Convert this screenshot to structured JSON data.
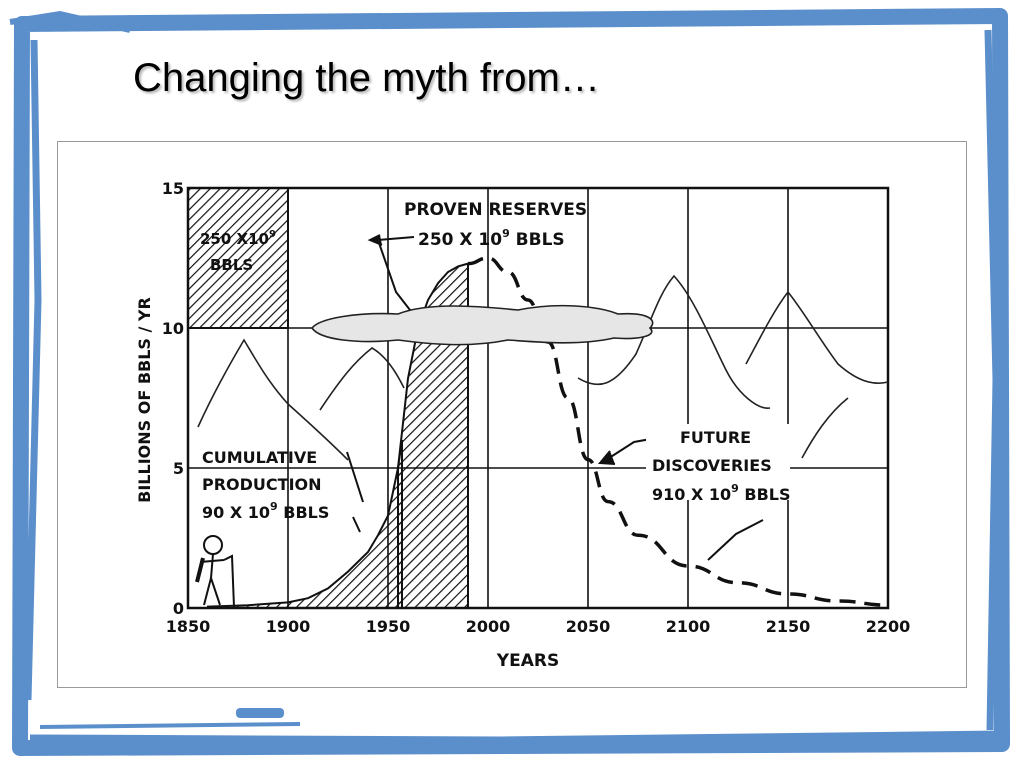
{
  "slide": {
    "title": "Changing the myth from…",
    "frame_color": "#5b8fcb"
  },
  "chart_data": {
    "type": "line",
    "xlabel": "YEARS",
    "ylabel": "BILLIONS OF BBLS / YR",
    "xlim": [
      1850,
      2200
    ],
    "ylim": [
      0,
      15
    ],
    "x_ticks": [
      "1850",
      "1900",
      "1950",
      "2000",
      "2050",
      "2100",
      "2150",
      "2200"
    ],
    "y_ticks": [
      "0",
      "5",
      "10",
      "15"
    ],
    "grid": true,
    "series": [
      {
        "style": "solid-shaded",
        "x": [
          1860,
          1880,
          1900,
          1910,
          1920,
          1930,
          1940,
          1945,
          1950,
          1955,
          1957
        ],
        "values": [
          0.05,
          0.1,
          0.2,
          0.35,
          0.7,
          1.3,
          2.0,
          2.6,
          3.3,
          5.0,
          6.0
        ]
      },
      {
        "style": "solid",
        "x": [
          1955,
          1960,
          1965,
          1970,
          1975,
          1980,
          1985,
          1990
        ],
        "values": [
          5.0,
          8.2,
          10.0,
          11.0,
          11.6,
          12.0,
          12.2,
          12.3
        ]
      },
      {
        "style": "dashed",
        "x": [
          1990,
          2000,
          2010,
          2020,
          2030,
          2040,
          2050,
          2060,
          2075,
          2100,
          2125,
          2150,
          2175,
          2200
        ],
        "values": [
          12.3,
          12.5,
          12.0,
          11.0,
          9.5,
          7.5,
          5.3,
          3.8,
          2.6,
          1.5,
          0.9,
          0.5,
          0.25,
          0.1
        ]
      }
    ],
    "annotations": {
      "box_top": "250 X10",
      "box_sup": "9",
      "box_bottom": "BBLS",
      "proven_1": "PROVEN  RESERVES",
      "proven_2": "250 X 10",
      "proven_sup": "9",
      "proven_3": " BBLS",
      "cumulative_1": "CUMULATIVE",
      "cumulative_2": "PRODUCTION",
      "cumulative_3": "90 X 10",
      "cumulative_sup": "9",
      "cumulative_4": " BBLS",
      "future_1": "FUTURE",
      "future_2": "DISCOVERIES",
      "future_3": "910 X 10",
      "future_sup": "9",
      "future_4": " BBLS"
    }
  }
}
